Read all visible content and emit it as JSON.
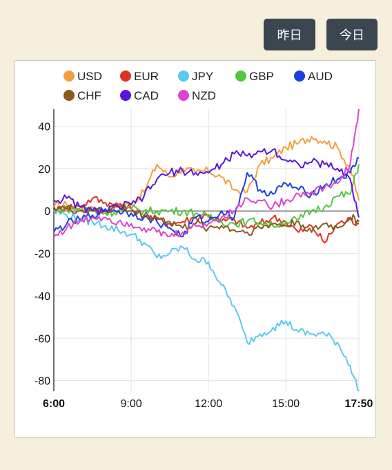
{
  "buttons": {
    "yesterday": "昨日",
    "today": "今日"
  },
  "chart_data": {
    "type": "line",
    "title": "",
    "xlabel": "",
    "ylabel": "",
    "x": [
      "6:00",
      "6:30",
      "7:00",
      "7:30",
      "8:00",
      "8:30",
      "9:00",
      "9:30",
      "10:00",
      "10:30",
      "11:00",
      "11:30",
      "12:00",
      "12:30",
      "13:00",
      "13:30",
      "14:00",
      "14:30",
      "15:00",
      "15:30",
      "16:00",
      "16:30",
      "17:00",
      "17:30",
      "17:50"
    ],
    "xlim": [
      "6:00",
      "17:50"
    ],
    "x_ticks": [
      "6:00",
      "9:00",
      "12:00",
      "15:00",
      "17:50"
    ],
    "x_ticks_bold": [
      "6:00",
      "17:50"
    ],
    "ylim": [
      -85,
      48
    ],
    "y_ticks": [
      40,
      20,
      0,
      -20,
      -40,
      -60,
      -80
    ],
    "grid": true,
    "legend_position": "top",
    "series": [
      {
        "name": "USD",
        "color": "#f0a040",
        "values": [
          2,
          3,
          1,
          2,
          0,
          3,
          3,
          9,
          22,
          16,
          20,
          18,
          19,
          16,
          10,
          9,
          22,
          25,
          30,
          32,
          35,
          33,
          30,
          20,
          5
        ]
      },
      {
        "name": "EUR",
        "color": "#dd3322",
        "values": [
          0,
          2,
          2,
          6,
          4,
          3,
          1,
          -2,
          -4,
          -6,
          -5,
          -3,
          -2,
          -5,
          -4,
          -8,
          -6,
          -3,
          -5,
          -10,
          -7,
          -15,
          -6,
          -4,
          -6
        ]
      },
      {
        "name": "JPY",
        "color": "#5bc8ee",
        "values": [
          0,
          -2,
          -4,
          -5,
          -7,
          -9,
          -11,
          -15,
          -22,
          -20,
          -17,
          -23,
          -24,
          -35,
          -45,
          -62,
          -58,
          -55,
          -52,
          -57,
          -58,
          -58,
          -62,
          -73,
          -85
        ]
      },
      {
        "name": "GBP",
        "color": "#55c440",
        "values": [
          0,
          1,
          1,
          0,
          -1,
          0,
          1,
          0,
          0,
          0,
          0,
          -1,
          -3,
          -5,
          -6,
          -5,
          -5,
          -7,
          -5,
          -4,
          0,
          2,
          7,
          8,
          22
        ]
      },
      {
        "name": "AUD",
        "color": "#1c3fe0",
        "values": [
          -10,
          -6,
          -4,
          -2,
          1,
          0,
          -1,
          -3,
          -5,
          -8,
          -12,
          -3,
          -5,
          0,
          -3,
          18,
          10,
          8,
          13,
          10,
          8,
          12,
          15,
          18,
          25
        ]
      },
      {
        "name": "CHF",
        "color": "#8b5a1a",
        "values": [
          2,
          1,
          0,
          0,
          0,
          2,
          0,
          -2,
          -3,
          -5,
          -8,
          -6,
          -8,
          -7,
          -9,
          -10,
          -8,
          -6,
          -7,
          -5,
          -10,
          -6,
          -8,
          -3,
          -5
        ]
      },
      {
        "name": "CAD",
        "color": "#5b14e0",
        "values": [
          5,
          6,
          2,
          0,
          0,
          2,
          3,
          7,
          15,
          18,
          19,
          18,
          18,
          22,
          27,
          26,
          28,
          29,
          24,
          22,
          23,
          22,
          20,
          15,
          -3
        ]
      },
      {
        "name": "NZD",
        "color": "#dd44cc",
        "values": [
          -12,
          -8,
          -5,
          -3,
          -3,
          -5,
          -6,
          -8,
          -10,
          -12,
          -10,
          -7,
          -6,
          -3,
          0,
          6,
          5,
          2,
          5,
          8,
          9,
          11,
          13,
          22,
          48
        ]
      }
    ]
  }
}
